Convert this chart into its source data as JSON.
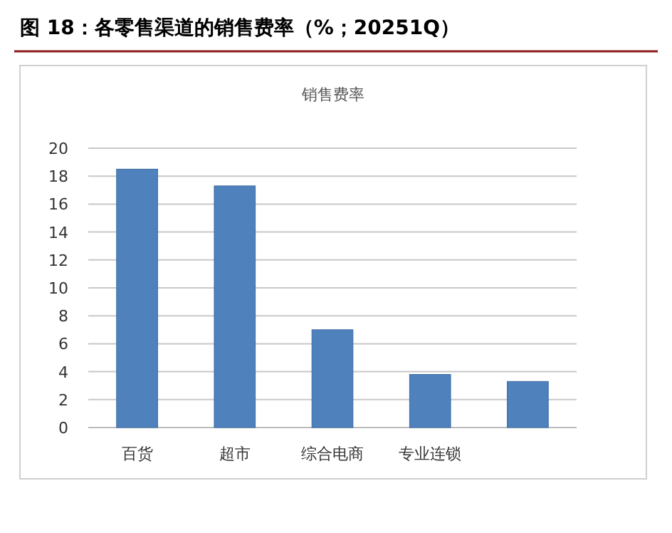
{
  "chart_data": {
    "type": "bar",
    "title": "图 18：各零售渠道的销售费率（%；20251Q）",
    "subtitle": "销售费率",
    "categories": [
      "百货",
      "超市",
      "综合电商",
      "专业连锁",
      null
    ],
    "values": [
      18.5,
      17.3,
      7.0,
      3.8,
      3.3
    ],
    "color": "#4f81bd",
    "ylim": [
      0,
      20
    ],
    "yticks": [
      0,
      2,
      4,
      6,
      8,
      10,
      12,
      14,
      16,
      18,
      20
    ],
    "grid": "y"
  }
}
